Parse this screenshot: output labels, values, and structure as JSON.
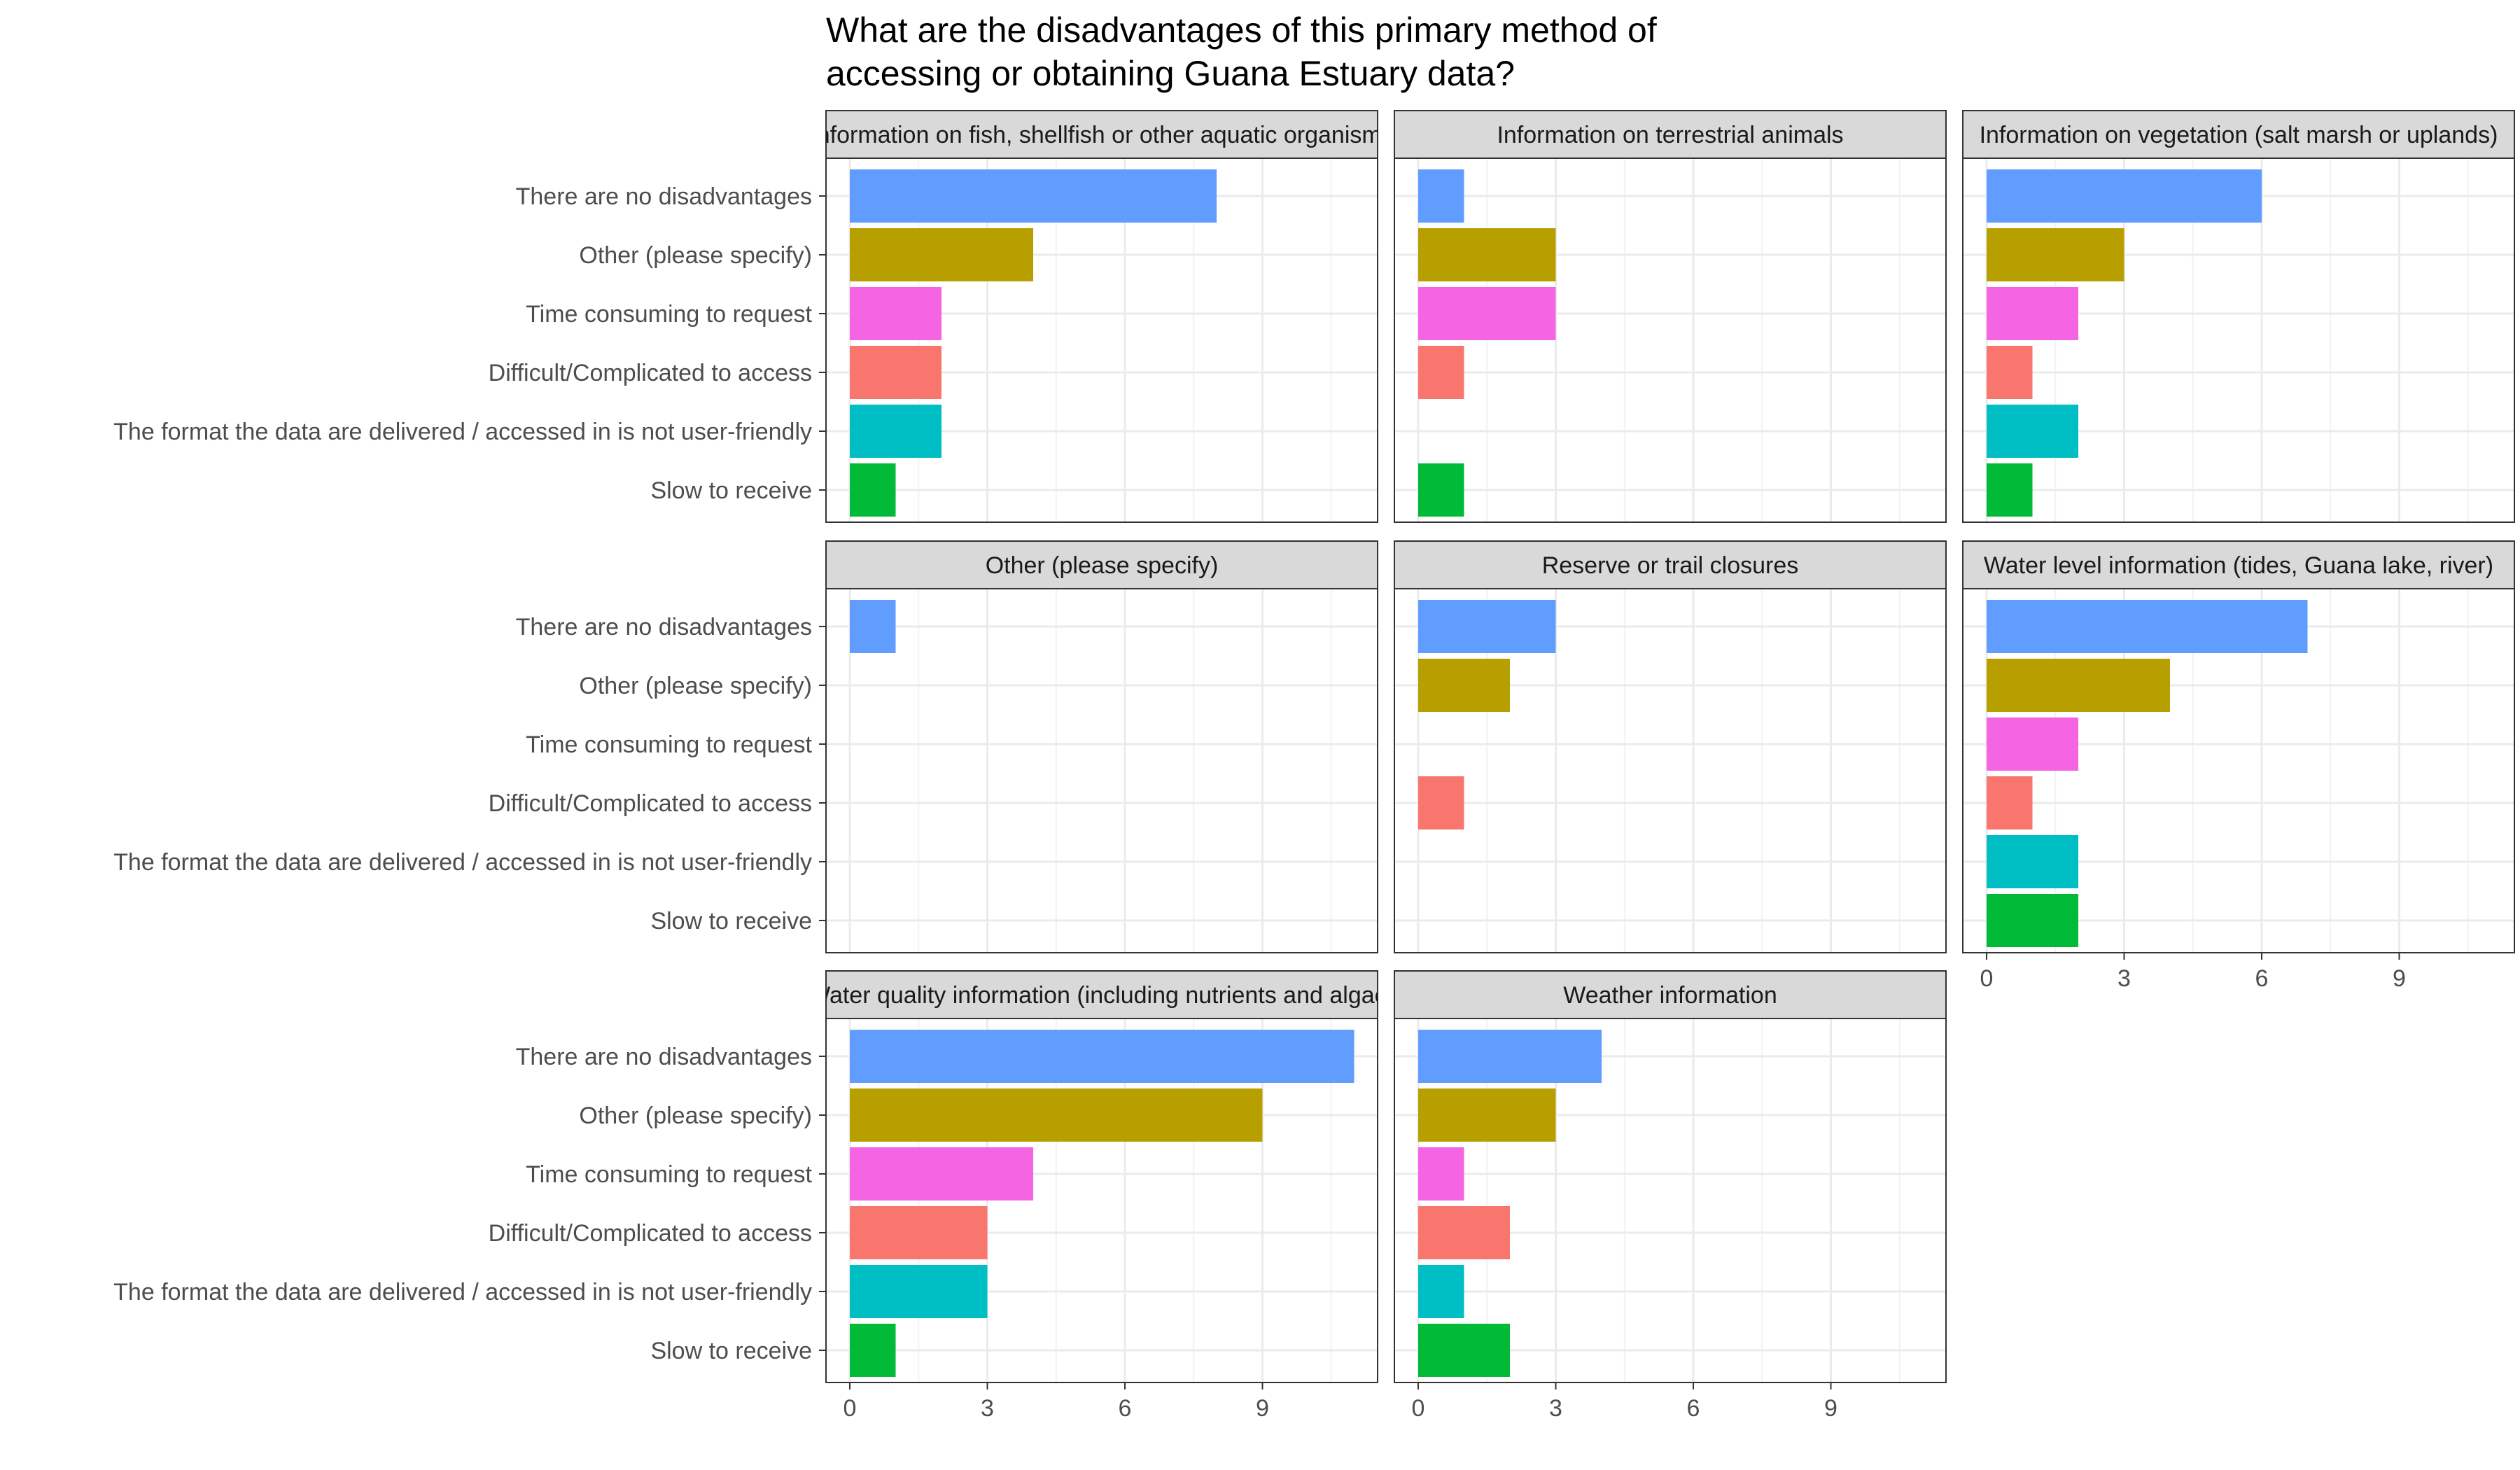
{
  "chart_data": {
    "type": "bar",
    "orientation": "horizontal",
    "title_lines": [
      "What are the disadvantages of this primary method of",
      "accessing or obtaining Guana Estuary data?"
    ],
    "xlabel": "",
    "ylabel": "",
    "xlim": [
      0,
      11
    ],
    "xticks": [
      0,
      3,
      6,
      9
    ],
    "grid": true,
    "legend": "none",
    "categories": [
      "There are no disadvantages",
      "Other (please specify)",
      "Time consuming to request",
      "Difficult/Complicated to access",
      "The format the data are delivered / accessed in is not user-friendly",
      "Slow to receive"
    ],
    "category_colors": [
      "#619CFF",
      "#B79F00",
      "#F564E3",
      "#F8766D",
      "#00BFC4",
      "#00BA38"
    ],
    "panels": [
      {
        "label": "Information on fish, shellfish or other aquatic organisms",
        "values": [
          8,
          4,
          2,
          2,
          2,
          1
        ]
      },
      {
        "label": "Information on terrestrial animals",
        "values": [
          1,
          3,
          3,
          1,
          0,
          1
        ]
      },
      {
        "label": "Information on vegetation (salt marsh or uplands)",
        "values": [
          6,
          3,
          2,
          1,
          2,
          1
        ]
      },
      {
        "label": "Other (please specify)",
        "values": [
          1,
          0,
          0,
          0,
          0,
          0
        ]
      },
      {
        "label": "Reserve or trail closures",
        "values": [
          3,
          2,
          0,
          1,
          0,
          0
        ]
      },
      {
        "label": "Water level information (tides, Guana lake, river)",
        "values": [
          7,
          4,
          2,
          1,
          2,
          2
        ]
      },
      {
        "label": "Water quality information (including nutrients and algae)",
        "values": [
          11,
          9,
          4,
          3,
          3,
          1
        ]
      },
      {
        "label": "Weather information",
        "values": [
          4,
          3,
          1,
          2,
          1,
          2
        ]
      }
    ]
  }
}
